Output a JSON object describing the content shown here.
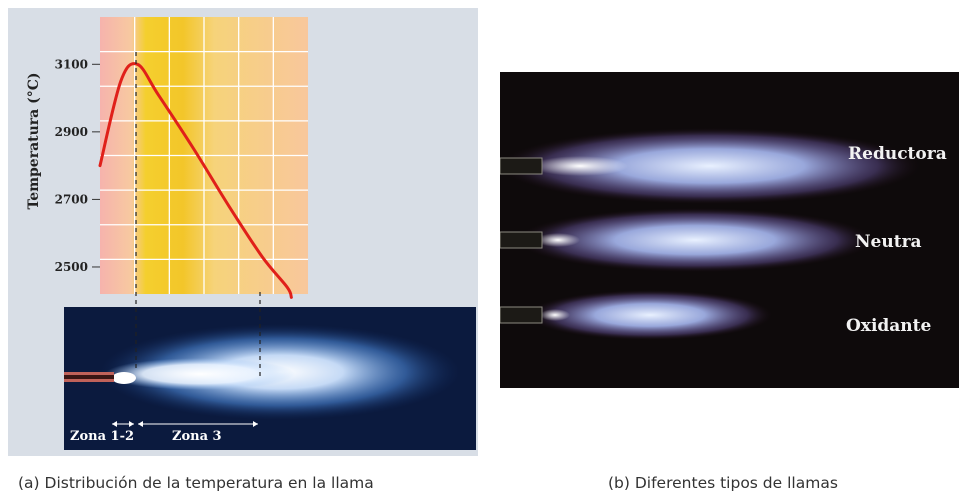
{
  "panel_a": {
    "zone_1_2_label": "Zona 1-2",
    "zone_3_label": "Zona 3",
    "caption": "(a) Distribución de la temperatura en la llama"
  },
  "panel_b": {
    "flame_labels": [
      "Reductora",
      "Neutra",
      "Oxidante"
    ],
    "caption": "(b) Diferentes tipos de llamas"
  },
  "chart_data": {
    "type": "line",
    "title": "",
    "xlabel": "",
    "ylabel": "Temperatura (°C)",
    "yticks": [
      2500,
      2700,
      2900,
      3100
    ],
    "ylim": [
      2420,
      3240
    ],
    "xlim": [
      0,
      1
    ],
    "grid": true,
    "x": [
      0.0,
      0.1,
      0.18,
      0.28,
      0.45,
      0.62,
      0.78,
      0.9,
      0.92
    ],
    "series": [
      {
        "values": [
          2800,
          3050,
          3100,
          3010,
          2850,
          2680,
          2530,
          2440,
          2410
        ],
        "color": "#e0201a"
      }
    ],
    "background_bands": [
      "#f5b3ac",
      "#f5cc2a",
      "#f7d67a",
      "#f8c89a"
    ]
  }
}
